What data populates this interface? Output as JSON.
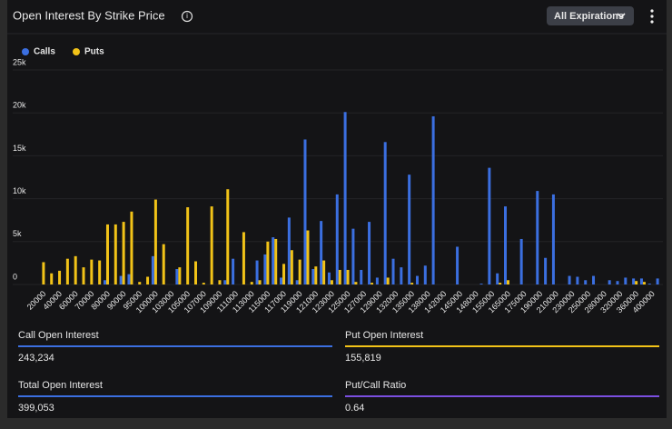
{
  "header": {
    "title": "Open Interest By Strike Price",
    "button": "All Expirations"
  },
  "chart_data": {
    "type": "bar",
    "categories": [
      "20000",
      null,
      "40000",
      null,
      "60000",
      null,
      "70000",
      null,
      "80000",
      null,
      "90000",
      null,
      "95000",
      null,
      "100000",
      null,
      "103000",
      null,
      "105000",
      null,
      "107000",
      null,
      "109000",
      null,
      "111000",
      null,
      "113000",
      null,
      "115000",
      null,
      "117000",
      null,
      "119000",
      null,
      "121000",
      null,
      "123000",
      null,
      "125000",
      null,
      "127000",
      null,
      "129000",
      null,
      "132000",
      null,
      "135000",
      null,
      "138000",
      null,
      "142000",
      null,
      "145000",
      null,
      "148000",
      null,
      "155000",
      null,
      "165000",
      null,
      "175000",
      null,
      "190000",
      null,
      "210000",
      null,
      "230000",
      null,
      "250000",
      null,
      "280000",
      null,
      "320000",
      null,
      "360000",
      null,
      "400000",
      null
    ],
    "series": [
      {
        "name": "Calls",
        "color": "#3b6fe0",
        "values": [
          0,
          0,
          0,
          0,
          0,
          0,
          0,
          0,
          500,
          0,
          1000,
          1200,
          0,
          0,
          3300,
          0,
          0,
          1800,
          0,
          0,
          0,
          0,
          0,
          500,
          3000,
          0,
          0,
          2800,
          3500,
          5500,
          800,
          7800,
          500,
          16900,
          1800,
          7400,
          1400,
          10500,
          20100,
          6500,
          1700,
          7300,
          800,
          16600,
          3000,
          2000,
          12800,
          1000,
          2200,
          19600,
          0,
          0,
          4400,
          0,
          0,
          100,
          13600,
          1300,
          9100,
          0,
          5300,
          0,
          10900,
          3100,
          10500,
          0,
          1000,
          900,
          500,
          1000,
          0,
          500,
          400,
          800,
          700,
          700,
          100,
          700
        ]
      },
      {
        "name": "Puts",
        "color": "#f2c318",
        "values": [
          2600,
          1300,
          1600,
          3000,
          3300,
          2000,
          2900,
          2800,
          7000,
          7000,
          7300,
          8500,
          300,
          900,
          9900,
          4700,
          0,
          2000,
          9000,
          2700,
          200,
          9100,
          500,
          11100,
          0,
          6100,
          300,
          500,
          5000,
          5300,
          2400,
          4000,
          2900,
          6300,
          2100,
          2800,
          500,
          1700,
          1700,
          300,
          0,
          200,
          0,
          800,
          0,
          0,
          200,
          0,
          0,
          0,
          0,
          0,
          0,
          0,
          0,
          0,
          0,
          200,
          500,
          0,
          0,
          0,
          0,
          0,
          0,
          0,
          0,
          0,
          0,
          0,
          0,
          0,
          0,
          0,
          400,
          300,
          0,
          0
        ]
      }
    ],
    "ylim": [
      0,
      25000
    ],
    "yticks": [
      0,
      {
        "value": 5000,
        "label": "5k"
      },
      {
        "value": 10000,
        "label": "10k"
      },
      {
        "value": 15000,
        "label": "15k"
      },
      {
        "value": 20000,
        "label": "20k"
      },
      {
        "value": 25000,
        "label": "25k"
      }
    ],
    "grid": true,
    "legend": "top-left"
  },
  "stats": [
    {
      "label": "Call Open Interest",
      "value": "243,234",
      "color": "#3b6fe0"
    },
    {
      "label": "Put Open Interest",
      "value": "155,819",
      "color": "#f2c318"
    },
    {
      "label": "Total Open Interest",
      "value": "399,053",
      "color": "#3b6fe0"
    },
    {
      "label": "Put/Call Ratio",
      "value": "0.64",
      "color": "#7b4fe0"
    }
  ]
}
